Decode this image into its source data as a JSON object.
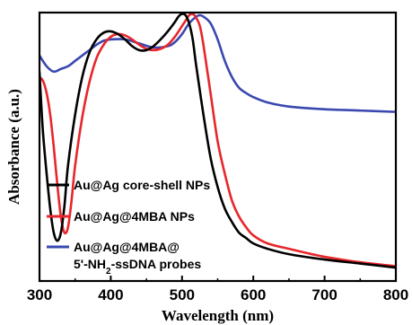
{
  "chart_data": {
    "type": "line",
    "title": "",
    "xlabel": "Wavelength (nm)",
    "ylabel": "Absorbance (a.u.)",
    "xlim": [
      300,
      800
    ],
    "ylim": [
      0,
      1
    ],
    "x_ticks": [
      "300",
      "400",
      "500",
      "600",
      "700",
      "800"
    ],
    "y_ticks_shown": false,
    "grid": false,
    "legend_placement": "bottom-left",
    "series": [
      {
        "name": "Au@Ag core-shell NPs",
        "color": "#000000",
        "x": [
          300,
          302,
          305,
          310,
          315,
          320,
          325,
          330,
          335,
          340,
          350,
          360,
          370,
          380,
          390,
          400,
          410,
          420,
          430,
          440,
          450,
          460,
          470,
          480,
          490,
          495,
          500,
          505,
          510,
          515,
          520,
          530,
          540,
          550,
          560,
          570,
          580,
          590,
          600,
          620,
          650,
          700,
          750,
          800
        ],
        "y": [
          0.78,
          0.68,
          0.55,
          0.4,
          0.27,
          0.18,
          0.15,
          0.18,
          0.28,
          0.43,
          0.62,
          0.76,
          0.85,
          0.9,
          0.925,
          0.93,
          0.92,
          0.9,
          0.875,
          0.86,
          0.86,
          0.875,
          0.9,
          0.93,
          0.965,
          0.985,
          0.995,
          0.99,
          0.96,
          0.9,
          0.8,
          0.62,
          0.46,
          0.35,
          0.27,
          0.22,
          0.18,
          0.16,
          0.14,
          0.12,
          0.1,
          0.08,
          0.065,
          0.05
        ]
      },
      {
        "name": "Au@Ag@4MBA NPs",
        "color": "#e8262b",
        "x": [
          300,
          305,
          310,
          315,
          320,
          325,
          330,
          335,
          340,
          345,
          350,
          360,
          370,
          380,
          390,
          400,
          410,
          420,
          430,
          440,
          450,
          460,
          470,
          480,
          490,
          500,
          505,
          510,
          515,
          520,
          525,
          530,
          540,
          550,
          560,
          570,
          580,
          590,
          600,
          620,
          650,
          700,
          750,
          800
        ],
        "y": [
          0.76,
          0.745,
          0.7,
          0.62,
          0.5,
          0.36,
          0.24,
          0.18,
          0.2,
          0.3,
          0.43,
          0.61,
          0.74,
          0.83,
          0.88,
          0.91,
          0.92,
          0.915,
          0.9,
          0.88,
          0.865,
          0.86,
          0.865,
          0.88,
          0.91,
          0.95,
          0.97,
          0.99,
          0.995,
          0.98,
          0.95,
          0.88,
          0.7,
          0.52,
          0.4,
          0.3,
          0.24,
          0.2,
          0.17,
          0.14,
          0.12,
          0.09,
          0.07,
          0.055
        ]
      },
      {
        "name": "Au@Ag@4MBA@ 5'-NH2-ssDNA probes",
        "color": "#3a48b0",
        "x": [
          300,
          310,
          320,
          330,
          340,
          350,
          360,
          370,
          380,
          390,
          400,
          420,
          440,
          460,
          480,
          490,
          500,
          510,
          520,
          525,
          530,
          540,
          550,
          560,
          570,
          580,
          590,
          600,
          620,
          650,
          700,
          750,
          800
        ],
        "y": [
          0.84,
          0.8,
          0.78,
          0.79,
          0.8,
          0.82,
          0.84,
          0.86,
          0.88,
          0.895,
          0.9,
          0.9,
          0.885,
          0.87,
          0.875,
          0.89,
          0.92,
          0.96,
          0.985,
          0.99,
          0.985,
          0.96,
          0.9,
          0.82,
          0.76,
          0.72,
          0.7,
          0.685,
          0.665,
          0.65,
          0.64,
          0.635,
          0.63
        ]
      }
    ],
    "legend_entries": [
      {
        "lines": [
          "Au@Ag core-shell NPs"
        ]
      },
      {
        "lines": [
          "Au@Ag@4MBA NPs"
        ]
      },
      {
        "lines": [
          "Au@Ag@4MBA@",
          "5'-NH2-ssDNA probes"
        ]
      }
    ]
  }
}
